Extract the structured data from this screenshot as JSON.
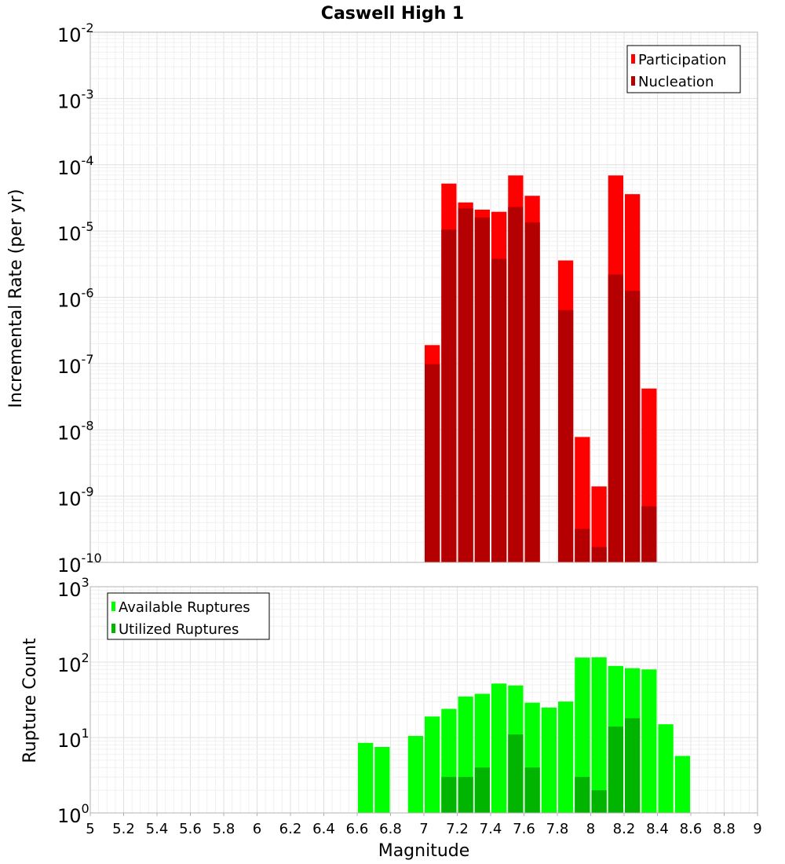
{
  "colors": {
    "participation": "#ff0000",
    "nucleation": "#b40000",
    "available": "#00ff00",
    "utilized": "#00b400",
    "grid": "#e6e6e6",
    "axis": "#b3b3b3"
  },
  "chart_data": [
    {
      "type": "bar",
      "scale": "log",
      "title": "Caswell High 1",
      "xlabel": "",
      "ylabel": "Incremental Rate (per yr)",
      "xlim": [
        5,
        9
      ],
      "ylim_exponents": [
        -10,
        -2
      ],
      "grid": true,
      "legend_position": "top-right",
      "y_ticks": [
        {
          "base": "10",
          "exp": "-2"
        },
        {
          "base": "10",
          "exp": "-3"
        },
        {
          "base": "10",
          "exp": "-4"
        },
        {
          "base": "10",
          "exp": "-5"
        },
        {
          "base": "10",
          "exp": "-6"
        },
        {
          "base": "10",
          "exp": "-7"
        },
        {
          "base": "10",
          "exp": "-8"
        },
        {
          "base": "10",
          "exp": "-9"
        },
        {
          "base": "10",
          "exp": "-10"
        }
      ],
      "x": [
        7.0,
        7.1,
        7.2,
        7.3,
        7.4,
        7.5,
        7.6,
        7.7,
        7.8,
        7.9,
        8.0,
        8.1,
        8.2,
        8.3
      ],
      "series": [
        {
          "name": "Participation",
          "values": [
            1.9e-07,
            5.2e-05,
            2.7e-05,
            2.1e-05,
            1.95e-05,
            6.9e-05,
            3.4e-05,
            null,
            3.6e-06,
            7.8e-09,
            1.4e-09,
            6.9e-05,
            3.6e-05,
            4.2e-08
          ]
        },
        {
          "name": "Nucleation",
          "values": [
            9.8e-08,
            1.05e-05,
            2.2e-05,
            1.6e-05,
            3.8e-06,
            2.3e-05,
            1.35e-05,
            null,
            6.4e-07,
            3.2e-10,
            1.7e-10,
            2.2e-06,
            1.25e-06,
            7e-10
          ]
        }
      ]
    },
    {
      "type": "bar",
      "scale": "log",
      "title": "",
      "xlabel": "Magnitude",
      "ylabel": "Rupture Count",
      "xlim": [
        5,
        9
      ],
      "ylim_exponents": [
        0,
        3
      ],
      "grid": true,
      "legend_position": "top-left",
      "y_ticks": [
        {
          "base": "10",
          "exp": "3"
        },
        {
          "base": "10",
          "exp": "2"
        },
        {
          "base": "10",
          "exp": "1"
        },
        {
          "base": "10",
          "exp": "0"
        }
      ],
      "x_tick_labels": [
        "5",
        "5.2",
        "5.4",
        "5.6",
        "5.8",
        "6",
        "6.2",
        "6.4",
        "6.6",
        "6.8",
        "7",
        "7.2",
        "7.4",
        "7.6",
        "7.8",
        "8",
        "8.2",
        "8.4",
        "8.6",
        "8.8",
        "9"
      ],
      "x": [
        6.6,
        6.7,
        6.8,
        6.9,
        7.0,
        7.1,
        7.2,
        7.3,
        7.4,
        7.5,
        7.6,
        7.7,
        7.8,
        7.9,
        8.0,
        8.1,
        8.2,
        8.3,
        8.4,
        8.5
      ],
      "series": [
        {
          "name": "Available Ruptures",
          "values": [
            8.5,
            7.5,
            null,
            10.5,
            19,
            24,
            35,
            38,
            52,
            49,
            29,
            25,
            30,
            115,
            116,
            89,
            83,
            80,
            15,
            5.7
          ]
        },
        {
          "name": "Utilized Ruptures",
          "values": [
            null,
            null,
            null,
            null,
            1,
            3,
            3,
            4,
            1,
            11,
            4,
            null,
            1,
            3,
            2,
            14,
            18,
            1,
            null,
            null
          ]
        }
      ]
    }
  ]
}
